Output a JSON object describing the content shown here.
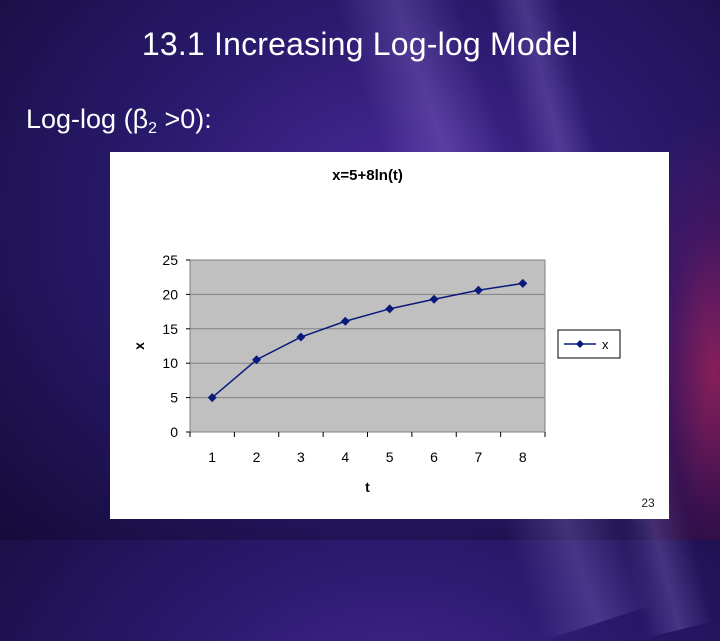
{
  "slide": {
    "title": "13.1 Increasing Log-log Model",
    "subtitle_main": "Log-log (β",
    "subtitle_sub": "2",
    "subtitle_rest": " >0):",
    "page_number": "23"
  },
  "chart_data": {
    "type": "line",
    "title": "x=5+8ln(t)",
    "xlabel": "t",
    "ylabel": "x",
    "categories": [
      1,
      2,
      3,
      4,
      5,
      6,
      7,
      8
    ],
    "series": [
      {
        "name": "x",
        "values": [
          5,
          10.5,
          13.8,
          16.1,
          17.9,
          19.3,
          20.6,
          21.6
        ],
        "color": "#0a1a7a"
      }
    ],
    "ylim": [
      0,
      25
    ],
    "yticks": [
      0,
      5,
      10,
      15,
      20,
      25
    ],
    "grid": true,
    "plot_background": "#c0c0c0",
    "legend_position": "right",
    "marker": "diamond"
  }
}
